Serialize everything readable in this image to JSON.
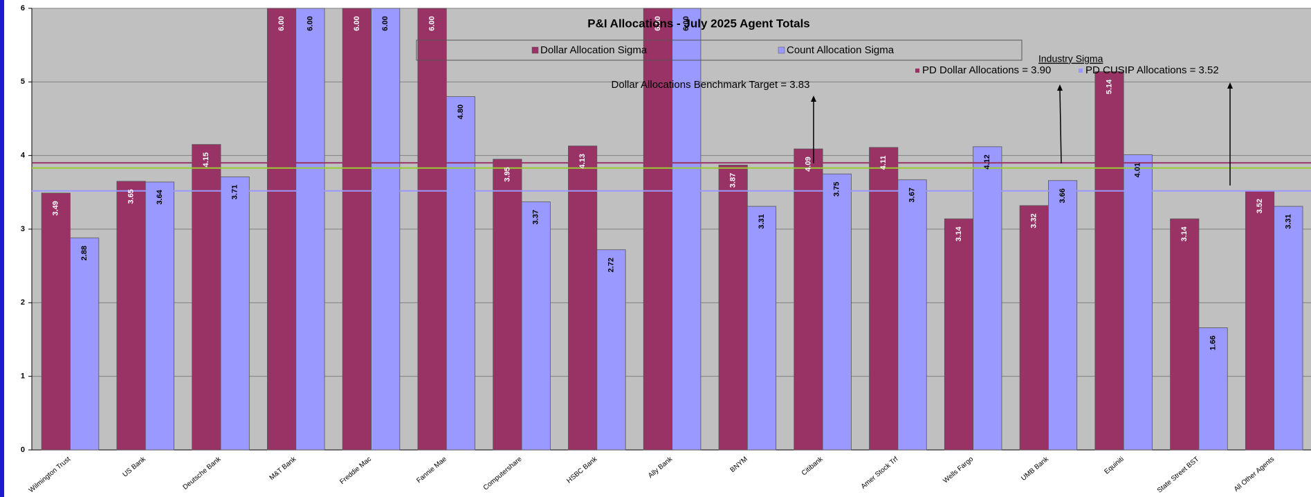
{
  "chart_data": {
    "type": "bar",
    "title": "P&I Allocations - July 2025 Agent Totals",
    "categories": [
      "Wilmington Trust",
      "US Bank",
      "Deutsche Bank",
      "M&T Bank",
      "Freddie Mac",
      "Fannie Mae",
      "Computershare",
      "HSBC Bank",
      "Ally Bank",
      "BNYM",
      "Citibank",
      "Amer Stock Trf",
      "Wells Fargo",
      "UMB Bank",
      "Equiniti",
      "State Street BST",
      "All Other Agents"
    ],
    "series": [
      {
        "name": "Dollar Allocation Sigma",
        "color": "#993366",
        "values": [
          3.49,
          3.65,
          4.15,
          6.0,
          6.0,
          6.0,
          3.95,
          4.13,
          6.0,
          3.87,
          4.09,
          4.11,
          3.14,
          3.32,
          5.14,
          3.14,
          3.52
        ],
        "value_labels": [
          "3.49",
          "3.65",
          "4.15",
          "6.00",
          "6.00",
          "6.00",
          "3.95",
          "4.13",
          "6.00",
          "3.87",
          "4.09",
          "4.11",
          "3.14",
          "3.32",
          "5.14",
          "3.14",
          "3.52"
        ]
      },
      {
        "name": "Count Allocation Sigma",
        "color": "#9999ff",
        "values": [
          2.88,
          3.64,
          3.71,
          6.0,
          6.0,
          4.8,
          3.37,
          2.72,
          6.0,
          3.31,
          3.75,
          3.67,
          4.12,
          3.66,
          4.01,
          1.66,
          3.31
        ],
        "value_labels": [
          "2.88",
          "3.64",
          "3.71",
          "6.00",
          "6.00",
          "4.80",
          "3.37",
          "2.72",
          "6.00",
          "3.31",
          "3.75",
          "3.67",
          "4.12",
          "3.66",
          "4.01",
          "1.66",
          "3.31"
        ]
      }
    ],
    "ylim": [
      0,
      6
    ],
    "yticks": [
      0,
      1,
      2,
      3,
      4,
      5,
      6
    ],
    "grid": true,
    "annotation": "Industry Sigma",
    "reference_lines": [
      {
        "label": "PD Dollar Allocations = 3.90",
        "value": 3.9,
        "color": "#993366"
      },
      {
        "label": "PD CUSIP Allocations = 3.52",
        "value": 3.52,
        "color": "#9999ff"
      },
      {
        "label": "Dollar Allocations Benchmark Target  = 3.83",
        "value": 3.83,
        "color": "#99cc33"
      }
    ]
  }
}
